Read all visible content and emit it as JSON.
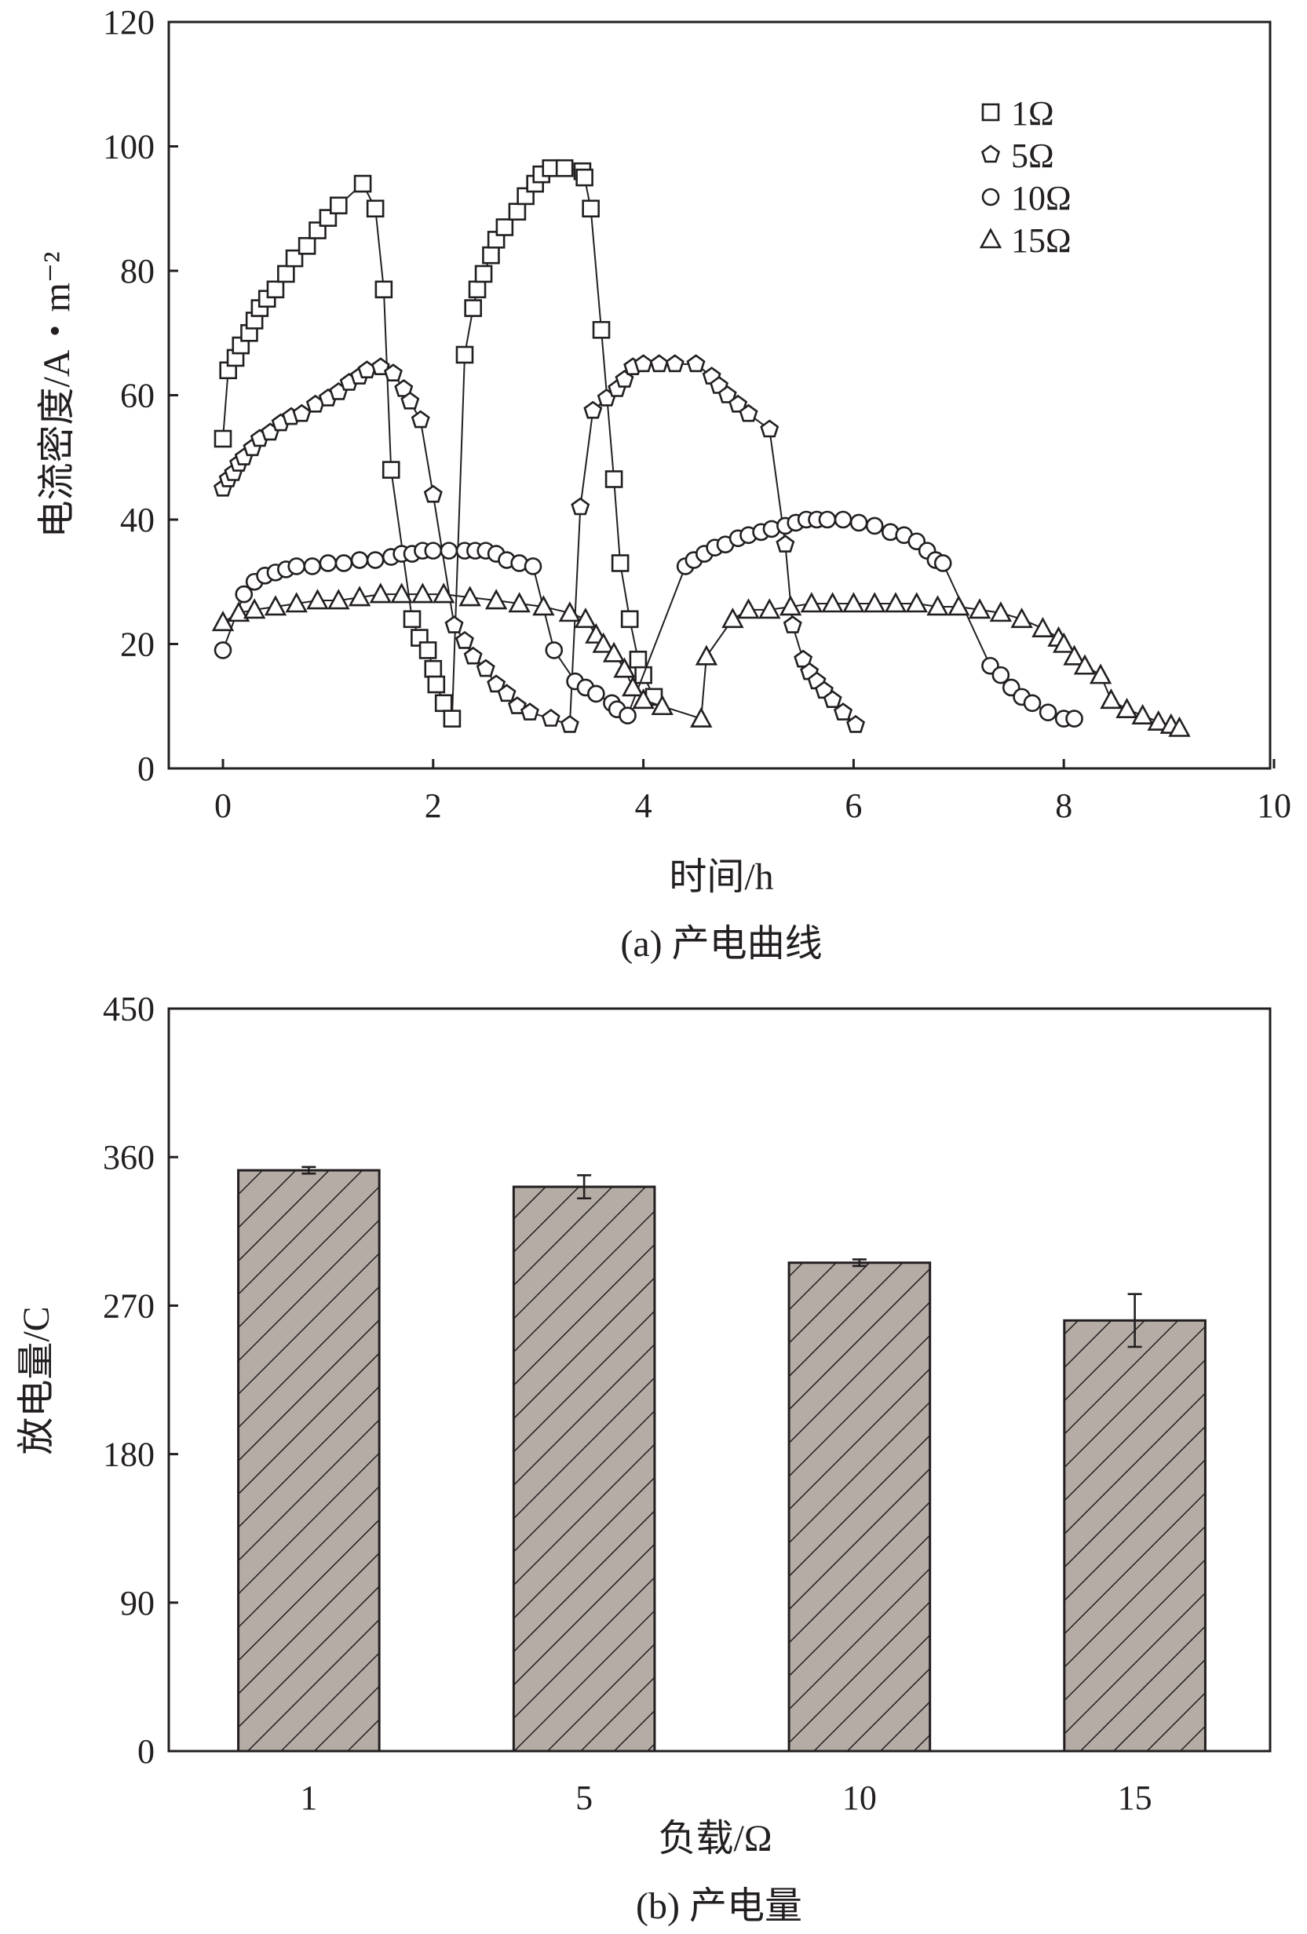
{
  "chart_data": [
    {
      "type": "line",
      "title": "(a) 产电曲线",
      "xlabel": "时间/h",
      "ylabel": "电流密度/A・m⁻²",
      "xlim": [
        0,
        10
      ],
      "ylim": [
        0,
        120
      ],
      "xticks": [
        "0",
        "2",
        "4",
        "6",
        "8",
        "10"
      ],
      "yticks": [
        "0",
        "20",
        "40",
        "60",
        "80",
        "100",
        "120"
      ],
      "legend_placement": "top-right",
      "grid": false,
      "series": [
        {
          "name": "1Ω",
          "marker": "square",
          "points": [
            [
              0,
              53
            ],
            [
              0.05,
              64
            ],
            [
              0.12,
              66
            ],
            [
              0.17,
              68
            ],
            [
              0.25,
              70
            ],
            [
              0.3,
              72
            ],
            [
              0.35,
              74
            ],
            [
              0.42,
              75.5
            ],
            [
              0.5,
              77
            ],
            [
              0.6,
              79.5
            ],
            [
              0.68,
              82
            ],
            [
              0.8,
              84
            ],
            [
              0.9,
              86.5
            ],
            [
              1.0,
              88.5
            ],
            [
              1.1,
              90.5
            ],
            [
              1.33,
              94
            ],
            [
              1.45,
              90
            ],
            [
              1.53,
              77
            ],
            [
              1.6,
              48
            ],
            [
              1.8,
              24
            ],
            [
              1.87,
              21
            ],
            [
              1.95,
              19
            ],
            [
              2.0,
              16
            ],
            [
              2.03,
              13.5
            ],
            [
              2.1,
              10.5
            ],
            [
              2.18,
              8
            ],
            [
              2.3,
              66.5
            ],
            [
              2.38,
              74
            ],
            [
              2.42,
              77
            ],
            [
              2.48,
              79.5
            ],
            [
              2.55,
              82.5
            ],
            [
              2.6,
              85
            ],
            [
              2.68,
              87
            ],
            [
              2.8,
              89.5
            ],
            [
              2.88,
              92
            ],
            [
              2.97,
              94
            ],
            [
              3.03,
              95.5
            ],
            [
              3.12,
              96.5
            ],
            [
              3.25,
              96.5
            ],
            [
              3.42,
              96
            ],
            [
              3.44,
              95
            ],
            [
              3.5,
              90
            ],
            [
              3.6,
              70.5
            ],
            [
              3.72,
              46.5
            ],
            [
              3.78,
              33
            ],
            [
              3.87,
              24
            ],
            [
              3.95,
              17.5
            ],
            [
              4.0,
              15
            ],
            [
              4.1,
              11.5
            ]
          ]
        },
        {
          "name": "5Ω",
          "marker": "pentagon",
          "points": [
            [
              0,
              45
            ],
            [
              0.05,
              46.5
            ],
            [
              0.1,
              47.5
            ],
            [
              0.15,
              49
            ],
            [
              0.2,
              50
            ],
            [
              0.28,
              51.5
            ],
            [
              0.35,
              53
            ],
            [
              0.45,
              54
            ],
            [
              0.55,
              55.5
            ],
            [
              0.65,
              56.5
            ],
            [
              0.75,
              57
            ],
            [
              0.88,
              58.5
            ],
            [
              1.0,
              59.5
            ],
            [
              1.1,
              60.5
            ],
            [
              1.2,
              62
            ],
            [
              1.3,
              63
            ],
            [
              1.37,
              64
            ],
            [
              1.5,
              64.5
            ],
            [
              1.62,
              63.5
            ],
            [
              1.72,
              61
            ],
            [
              1.78,
              59
            ],
            [
              1.88,
              56
            ],
            [
              2.0,
              44
            ],
            [
              2.2,
              23
            ],
            [
              2.3,
              20.5
            ],
            [
              2.38,
              18
            ],
            [
              2.5,
              16
            ],
            [
              2.6,
              13.5
            ],
            [
              2.7,
              12
            ],
            [
              2.8,
              10
            ],
            [
              2.92,
              9
            ],
            [
              3.12,
              8
            ],
            [
              3.3,
              7
            ],
            [
              3.4,
              42
            ],
            [
              3.52,
              57.5
            ],
            [
              3.65,
              59.5
            ],
            [
              3.75,
              61
            ],
            [
              3.82,
              62.5
            ],
            [
              3.9,
              64.5
            ],
            [
              4.0,
              65
            ],
            [
              4.15,
              65
            ],
            [
              4.3,
              65
            ],
            [
              4.5,
              65
            ],
            [
              4.65,
              63
            ],
            [
              4.72,
              61.5
            ],
            [
              4.8,
              60
            ],
            [
              4.9,
              58.5
            ],
            [
              5.0,
              57
            ],
            [
              5.2,
              54.5
            ],
            [
              5.35,
              36
            ],
            [
              5.42,
              23
            ],
            [
              5.52,
              17.5
            ],
            [
              5.58,
              15.5
            ],
            [
              5.65,
              14
            ],
            [
              5.72,
              12.5
            ],
            [
              5.8,
              11
            ],
            [
              5.9,
              9
            ],
            [
              6.02,
              7
            ]
          ]
        },
        {
          "name": "10Ω",
          "marker": "circle",
          "points": [
            [
              0,
              19
            ],
            [
              0.2,
              28
            ],
            [
              0.3,
              30
            ],
            [
              0.4,
              31
            ],
            [
              0.5,
              31.5
            ],
            [
              0.6,
              32
            ],
            [
              0.7,
              32.5
            ],
            [
              0.85,
              32.5
            ],
            [
              1.0,
              33
            ],
            [
              1.15,
              33
            ],
            [
              1.3,
              33.5
            ],
            [
              1.45,
              33.5
            ],
            [
              1.6,
              34
            ],
            [
              1.7,
              34.5
            ],
            [
              1.8,
              34.5
            ],
            [
              1.9,
              35
            ],
            [
              2.0,
              35
            ],
            [
              2.15,
              35
            ],
            [
              2.3,
              35
            ],
            [
              2.4,
              35
            ],
            [
              2.5,
              35
            ],
            [
              2.6,
              34.5
            ],
            [
              2.7,
              33.5
            ],
            [
              2.82,
              33
            ],
            [
              2.95,
              32.5
            ],
            [
              3.15,
              19
            ],
            [
              3.35,
              14
            ],
            [
              3.45,
              13
            ],
            [
              3.55,
              12
            ],
            [
              3.7,
              10.5
            ],
            [
              3.75,
              9.5
            ],
            [
              3.85,
              8.5
            ],
            [
              4.4,
              32.5
            ],
            [
              4.48,
              33.5
            ],
            [
              4.58,
              34.5
            ],
            [
              4.68,
              35.5
            ],
            [
              4.78,
              36
            ],
            [
              4.9,
              37
            ],
            [
              5.0,
              37.5
            ],
            [
              5.12,
              38
            ],
            [
              5.22,
              38.5
            ],
            [
              5.35,
              39
            ],
            [
              5.45,
              39.5
            ],
            [
              5.55,
              40
            ],
            [
              5.65,
              40
            ],
            [
              5.75,
              40
            ],
            [
              5.9,
              40
            ],
            [
              6.05,
              39.5
            ],
            [
              6.2,
              39
            ],
            [
              6.35,
              38
            ],
            [
              6.48,
              37.5
            ],
            [
              6.6,
              36.5
            ],
            [
              6.7,
              35
            ],
            [
              6.78,
              33.5
            ],
            [
              6.85,
              33
            ],
            [
              7.3,
              16.5
            ],
            [
              7.4,
              15
            ],
            [
              7.5,
              13
            ],
            [
              7.6,
              11.5
            ],
            [
              7.7,
              10.5
            ],
            [
              7.85,
              9
            ],
            [
              8.0,
              8
            ],
            [
              8.1,
              8
            ]
          ]
        },
        {
          "name": "15Ω",
          "marker": "triangle",
          "points": [
            [
              0,
              23.5
            ],
            [
              0.15,
              25
            ],
            [
              0.3,
              25.5
            ],
            [
              0.5,
              26
            ],
            [
              0.7,
              26.5
            ],
            [
              0.9,
              27
            ],
            [
              1.1,
              27
            ],
            [
              1.3,
              27.5
            ],
            [
              1.5,
              28
            ],
            [
              1.7,
              28
            ],
            [
              1.9,
              28
            ],
            [
              2.1,
              28
            ],
            [
              2.35,
              27.5
            ],
            [
              2.6,
              27
            ],
            [
              2.82,
              26.5
            ],
            [
              3.05,
              26
            ],
            [
              3.3,
              25
            ],
            [
              3.45,
              24
            ],
            [
              3.55,
              21.5
            ],
            [
              3.62,
              20
            ],
            [
              3.72,
              18.5
            ],
            [
              3.82,
              16
            ],
            [
              3.9,
              13
            ],
            [
              4.0,
              11
            ],
            [
              4.18,
              10
            ],
            [
              4.55,
              8
            ],
            [
              4.6,
              18
            ],
            [
              4.85,
              24
            ],
            [
              5.0,
              25.5
            ],
            [
              5.2,
              25.5
            ],
            [
              5.4,
              26
            ],
            [
              5.6,
              26.5
            ],
            [
              5.8,
              26.5
            ],
            [
              6.0,
              26.5
            ],
            [
              6.2,
              26.5
            ],
            [
              6.4,
              26.5
            ],
            [
              6.6,
              26.5
            ],
            [
              6.8,
              26
            ],
            [
              7.0,
              26
            ],
            [
              7.2,
              25.5
            ],
            [
              7.4,
              25
            ],
            [
              7.6,
              24
            ],
            [
              7.8,
              22.5
            ],
            [
              7.95,
              21
            ],
            [
              8.0,
              20
            ],
            [
              8.1,
              18
            ],
            [
              8.2,
              16.5
            ],
            [
              8.35,
              15
            ],
            [
              8.45,
              11
            ],
            [
              8.6,
              9.5
            ],
            [
              8.75,
              8.5
            ],
            [
              8.9,
              7.5
            ],
            [
              9.02,
              7
            ],
            [
              9.1,
              6.5
            ]
          ]
        }
      ]
    },
    {
      "type": "bar",
      "title": "(b) 产电量",
      "xlabel": "负载/Ω",
      "ylabel": "放电量/C",
      "ylim": [
        0,
        450
      ],
      "yticks": [
        "0",
        "90",
        "180",
        "270",
        "360",
        "450"
      ],
      "categories": [
        "1",
        "5",
        "10",
        "15"
      ],
      "values": [
        352,
        342,
        296,
        261
      ],
      "errors": [
        2,
        7,
        2,
        16
      ],
      "bar_color": "#b5aca6",
      "hatch": "diagonal",
      "grid": false
    }
  ]
}
